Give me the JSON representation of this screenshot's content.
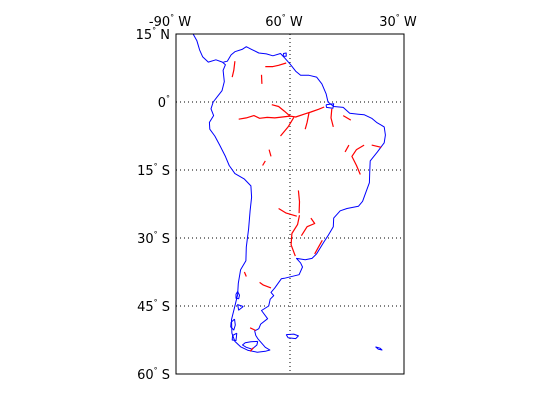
{
  "map": {
    "projection": "equidistant cylindrical",
    "lon_range": [
      -90,
      -30
    ],
    "lat_range": [
      -60,
      15
    ],
    "grid": "dotted",
    "colors": {
      "coastline": "#0000ff",
      "rivers": "#ff0000",
      "frame": "#000000",
      "grid": "#000000"
    },
    "lon_ticks": [
      {
        "value": -90,
        "deg": "90",
        "hem": "W"
      },
      {
        "value": -60,
        "deg": "60",
        "hem": "W"
      },
      {
        "value": -30,
        "deg": "30",
        "hem": "W"
      }
    ],
    "lat_ticks": [
      {
        "value": 15,
        "deg": "15",
        "hem": "N"
      },
      {
        "value": 0,
        "deg": "0",
        "hem": ""
      },
      {
        "value": -15,
        "deg": "15",
        "hem": "S"
      },
      {
        "value": -30,
        "deg": "30",
        "hem": "S"
      },
      {
        "value": -45,
        "deg": "45",
        "hem": "S"
      },
      {
        "value": -60,
        "deg": "60",
        "hem": "S"
      }
    ],
    "coastlines": [
      [
        [
          -88.0,
          15.0
        ],
        [
          -85.5,
          15.0
        ],
        [
          -84.5,
          13.5
        ],
        [
          -83.8,
          11.5
        ],
        [
          -83.0,
          10.0
        ],
        [
          -81.5,
          8.8
        ],
        [
          -79.5,
          9.3
        ],
        [
          -77.8,
          8.8
        ],
        [
          -77.0,
          8.2
        ],
        [
          -77.6,
          7.0
        ],
        [
          -77.3,
          4.5
        ],
        [
          -77.9,
          2.5
        ],
        [
          -79.0,
          1.3
        ],
        [
          -80.2,
          0.0
        ],
        [
          -80.8,
          -1.5
        ],
        [
          -80.1,
          -3.0
        ],
        [
          -81.2,
          -4.5
        ],
        [
          -81.1,
          -6.0
        ],
        [
          -79.8,
          -7.5
        ],
        [
          -78.5,
          -9.5
        ],
        [
          -77.0,
          -12.0
        ],
        [
          -76.0,
          -14.0
        ],
        [
          -74.5,
          -15.8
        ],
        [
          -72.0,
          -17.0
        ],
        [
          -70.3,
          -18.5
        ],
        [
          -70.1,
          -21.0
        ],
        [
          -70.5,
          -24.0
        ],
        [
          -70.9,
          -28.0
        ],
        [
          -71.5,
          -32.0
        ],
        [
          -71.6,
          -35.0
        ],
        [
          -73.0,
          -37.0
        ],
        [
          -73.6,
          -40.0
        ],
        [
          -73.8,
          -42.5
        ],
        [
          -74.5,
          -45.0
        ],
        [
          -75.4,
          -48.0
        ],
        [
          -75.3,
          -51.0
        ],
        [
          -74.5,
          -52.8
        ],
        [
          -73.0,
          -54.0
        ],
        [
          -71.0,
          -54.8
        ],
        [
          -68.6,
          -55.2
        ],
        [
          -66.5,
          -55.0
        ],
        [
          -65.3,
          -54.7
        ],
        [
          -66.5,
          -54.1
        ],
        [
          -68.4,
          -52.3
        ],
        [
          -69.0,
          -51.5
        ],
        [
          -69.3,
          -50.5
        ],
        [
          -68.2,
          -50.0
        ],
        [
          -67.7,
          -49.0
        ],
        [
          -65.9,
          -47.8
        ],
        [
          -67.5,
          -46.0
        ],
        [
          -65.6,
          -45.0
        ],
        [
          -65.2,
          -43.5
        ],
        [
          -64.3,
          -42.7
        ],
        [
          -65.0,
          -42.0
        ],
        [
          -64.0,
          -41.0
        ],
        [
          -62.3,
          -39.0
        ],
        [
          -61.5,
          -38.9
        ],
        [
          -57.6,
          -38.1
        ],
        [
          -56.7,
          -36.4
        ],
        [
          -57.2,
          -35.5
        ],
        [
          -58.3,
          -34.5
        ],
        [
          -56.0,
          -34.8
        ],
        [
          -54.2,
          -34.5
        ],
        [
          -53.0,
          -33.5
        ],
        [
          -51.1,
          -30.9
        ],
        [
          -50.0,
          -29.5
        ],
        [
          -48.6,
          -27.5
        ],
        [
          -48.5,
          -25.6
        ],
        [
          -46.8,
          -24.0
        ],
        [
          -45.0,
          -23.5
        ],
        [
          -42.0,
          -23.0
        ],
        [
          -40.9,
          -21.9
        ],
        [
          -40.3,
          -20.5
        ],
        [
          -39.1,
          -17.8
        ],
        [
          -39.0,
          -15.0
        ],
        [
          -38.9,
          -13.0
        ],
        [
          -37.0,
          -11.0
        ],
        [
          -35.2,
          -9.0
        ],
        [
          -34.9,
          -7.3
        ],
        [
          -35.2,
          -5.5
        ],
        [
          -37.2,
          -4.5
        ],
        [
          -38.5,
          -3.6
        ],
        [
          -40.5,
          -2.8
        ],
        [
          -42.0,
          -2.7
        ],
        [
          -44.3,
          -2.5
        ],
        [
          -46.0,
          -1.2
        ],
        [
          -48.5,
          -1.0
        ],
        [
          -50.0,
          0.0
        ],
        [
          -50.5,
          1.8
        ],
        [
          -51.6,
          4.0
        ],
        [
          -53.0,
          5.5
        ],
        [
          -55.0,
          5.9
        ],
        [
          -57.2,
          5.9
        ],
        [
          -58.5,
          6.8
        ],
        [
          -60.0,
          8.4
        ],
        [
          -61.6,
          9.9
        ],
        [
          -62.5,
          10.7
        ],
        [
          -64.5,
          10.2
        ],
        [
          -66.2,
          10.6
        ],
        [
          -68.2,
          10.8
        ],
        [
          -70.1,
          11.6
        ],
        [
          -71.5,
          12.2
        ],
        [
          -72.6,
          11.6
        ],
        [
          -74.5,
          11.1
        ],
        [
          -75.5,
          10.4
        ],
        [
          -76.5,
          9.0
        ],
        [
          -77.5,
          8.8
        ]
      ],
      [
        [
          -68.5,
          -52.8
        ],
        [
          -68.7,
          -53.6
        ],
        [
          -70.0,
          -54.5
        ],
        [
          -71.5,
          -54.1
        ],
        [
          -72.5,
          -53.6
        ],
        [
          -71.8,
          -53.1
        ],
        [
          -70.3,
          -52.9
        ],
        [
          -68.5,
          -52.8
        ]
      ],
      [
        [
          -73.8,
          -41.8
        ],
        [
          -74.2,
          -42.4
        ],
        [
          -74.2,
          -43.3
        ],
        [
          -73.5,
          -43.4
        ],
        [
          -73.3,
          -42.6
        ],
        [
          -73.8,
          -41.8
        ]
      ],
      [
        [
          -61.0,
          -51.3
        ],
        [
          -59.0,
          -51.2
        ],
        [
          -57.8,
          -51.6
        ],
        [
          -58.5,
          -52.2
        ],
        [
          -60.5,
          -52.0
        ],
        [
          -61.0,
          -51.3
        ]
      ],
      [
        [
          -37.5,
          -54.0
        ],
        [
          -36.3,
          -54.3
        ],
        [
          -35.8,
          -54.7
        ],
        [
          -36.8,
          -54.5
        ],
        [
          -37.5,
          -54.0
        ]
      ],
      [
        [
          -61.8,
          10.1
        ],
        [
          -61.0,
          10.1
        ],
        [
          -61.0,
          10.8
        ],
        [
          -61.7,
          10.7
        ],
        [
          -61.8,
          10.1
        ]
      ],
      [
        [
          -50.5,
          -0.6
        ],
        [
          -48.5,
          -0.4
        ],
        [
          -48.7,
          -1.4
        ],
        [
          -50.4,
          -1.2
        ],
        [
          -50.5,
          -0.6
        ]
      ],
      [
        [
          -74.6,
          -47.9
        ],
        [
          -75.5,
          -48.6
        ],
        [
          -75.6,
          -49.6
        ],
        [
          -74.8,
          -50.3
        ],
        [
          -74.4,
          -49.2
        ],
        [
          -74.6,
          -47.9
        ]
      ],
      [
        [
          -74.0,
          -51.0
        ],
        [
          -75.1,
          -51.5
        ],
        [
          -75.2,
          -52.5
        ],
        [
          -74.2,
          -52.6
        ],
        [
          -74.0,
          -51.0
        ]
      ],
      [
        [
          -72.3,
          -45.1
        ],
        [
          -73.8,
          -44.7
        ],
        [
          -73.5,
          -45.9
        ],
        [
          -72.3,
          -45.1
        ]
      ]
    ],
    "rivers": [
      [
        [
          -73.5,
          -3.8
        ],
        [
          -71.5,
          -3.5
        ],
        [
          -69.5,
          -3.0
        ],
        [
          -68.0,
          -3.6
        ],
        [
          -66.0,
          -3.4
        ],
        [
          -64.0,
          -3.5
        ],
        [
          -62.0,
          -3.3
        ],
        [
          -60.0,
          -3.1
        ],
        [
          -58.5,
          -3.3
        ],
        [
          -56.0,
          -2.6
        ],
        [
          -54.5,
          -2.2
        ],
        [
          -52.5,
          -1.6
        ],
        [
          -51.0,
          -1.1
        ]
      ],
      [
        [
          -60.0,
          -3.1
        ],
        [
          -61.5,
          -2.0
        ],
        [
          -63.0,
          -1.0
        ],
        [
          -64.8,
          -0.6
        ]
      ],
      [
        [
          -59.0,
          -3.4
        ],
        [
          -60.5,
          -5.5
        ],
        [
          -62.5,
          -7.5
        ]
      ],
      [
        [
          -55.0,
          -2.4
        ],
        [
          -55.5,
          -4.5
        ],
        [
          -56.0,
          -6.0
        ]
      ],
      [
        [
          -49.0,
          -1.5
        ],
        [
          -49.2,
          -3.5
        ],
        [
          -48.6,
          -5.5
        ]
      ],
      [
        [
          -66.5,
          7.8
        ],
        [
          -64.5,
          7.8
        ],
        [
          -63.0,
          8.1
        ],
        [
          -61.0,
          8.6
        ]
      ],
      [
        [
          -67.5,
          6.0
        ],
        [
          -67.4,
          4.0
        ]
      ],
      [
        [
          -74.5,
          9.0
        ],
        [
          -74.8,
          7.0
        ],
        [
          -75.2,
          5.5
        ]
      ],
      [
        [
          -57.5,
          -25.0
        ],
        [
          -58.0,
          -27.0
        ],
        [
          -59.5,
          -29.0
        ],
        [
          -59.7,
          -31.5
        ],
        [
          -58.6,
          -34.0
        ]
      ],
      [
        [
          -57.8,
          -19.5
        ],
        [
          -57.5,
          -22.0
        ],
        [
          -57.6,
          -24.5
        ]
      ],
      [
        [
          -58.2,
          -25.2
        ],
        [
          -61.0,
          -24.5
        ],
        [
          -63.0,
          -23.5
        ]
      ],
      [
        [
          -54.5,
          -25.6
        ],
        [
          -53.5,
          -26.8
        ],
        [
          -55.5,
          -27.5
        ],
        [
          -57.0,
          -29.5
        ]
      ],
      [
        [
          -41.5,
          -16.0
        ],
        [
          -42.5,
          -14.0
        ],
        [
          -43.7,
          -12.0
        ],
        [
          -42.5,
          -10.5
        ],
        [
          -40.5,
          -9.5
        ]
      ],
      [
        [
          -45.5,
          -11.0
        ],
        [
          -44.5,
          -9.5
        ]
      ],
      [
        [
          -67.2,
          -14.0
        ],
        [
          -66.5,
          -13.0
        ]
      ],
      [
        [
          -65.5,
          -10.5
        ],
        [
          -65.0,
          -12.0
        ]
      ],
      [
        [
          -72.0,
          -37.5
        ],
        [
          -71.5,
          -38.5
        ]
      ],
      [
        [
          -68.0,
          -39.8
        ],
        [
          -67.0,
          -40.4
        ],
        [
          -65.0,
          -41.0
        ]
      ],
      [
        [
          -69.0,
          -50.4
        ],
        [
          -70.5,
          -49.8
        ]
      ],
      [
        [
          -70.5,
          -55.0
        ],
        [
          -69.6,
          -54.2
        ]
      ],
      [
        [
          -36.0,
          -10.0
        ],
        [
          -38.5,
          -9.5
        ]
      ],
      [
        [
          -51.5,
          -30.5
        ],
        [
          -52.5,
          -32.0
        ],
        [
          -53.5,
          -33.5
        ]
      ],
      [
        [
          -44.0,
          -4.0
        ],
        [
          -46.0,
          -3.0
        ]
      ]
    ]
  }
}
